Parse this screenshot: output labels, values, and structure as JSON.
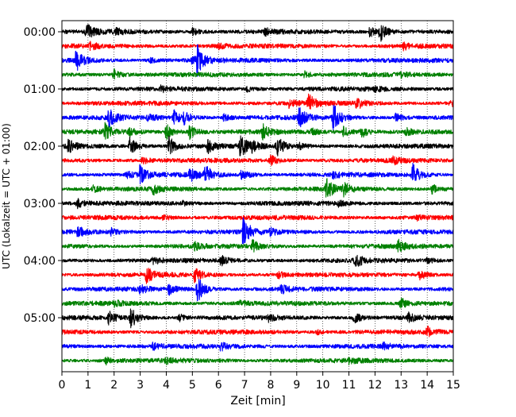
{
  "chart_data": {
    "type": "line",
    "subtype": "helicorder",
    "xlabel": "Zeit  [min]",
    "ylabel": "UTC (Lokalzeit = UTC + 01:00)",
    "xlim": [
      0,
      15
    ],
    "x_ticks": [
      "0",
      "1",
      "2",
      "3",
      "4",
      "5",
      "6",
      "7",
      "8",
      "9",
      "10",
      "11",
      "12",
      "13",
      "14",
      "15"
    ],
    "y_ticks": [
      "00:00",
      "01:00",
      "02:00",
      "03:00",
      "04:00",
      "05:00"
    ],
    "grid": "vertical dotted lines at each minute",
    "line_colors": [
      "#000000",
      "#ff0000",
      "#0000ff",
      "#008000"
    ],
    "rows": [
      {
        "start": "00:00",
        "color": "#000000",
        "events": [
          [
            0.95,
            1.0
          ],
          [
            12.2,
            1.2
          ],
          [
            11.8,
            0.7
          ],
          [
            5.0,
            0.45
          ],
          [
            7.8,
            0.45
          ],
          [
            2.1,
            0.35
          ]
        ]
      },
      {
        "start": "00:15",
        "color": "#ff0000",
        "events": [
          [
            1.1,
            0.4
          ],
          [
            13.1,
            0.45
          ],
          [
            6.0,
            0.3
          ]
        ]
      },
      {
        "start": "00:30",
        "color": "#0000ff",
        "events": [
          [
            0.55,
            1.5
          ],
          [
            5.2,
            1.8
          ],
          [
            5.0,
            0.4
          ],
          [
            3.4,
            0.3
          ]
        ]
      },
      {
        "start": "00:45",
        "color": "#008000",
        "events": [
          [
            2.0,
            0.7
          ],
          [
            9.3,
            0.4
          ],
          [
            13.0,
            0.3
          ]
        ]
      },
      {
        "start": "01:00",
        "color": "#000000",
        "events": [
          [
            3.8,
            0.3
          ],
          [
            7.1,
            0.3
          ],
          [
            12.0,
            0.3
          ]
        ]
      },
      {
        "start": "01:15",
        "color": "#ff0000",
        "events": [
          [
            9.45,
            1.2
          ],
          [
            11.3,
            0.8
          ],
          [
            8.7,
            0.5
          ],
          [
            14.9,
            0.4
          ]
        ]
      },
      {
        "start": "01:30",
        "color": "#0000ff",
        "events": [
          [
            1.8,
            1.3
          ],
          [
            9.1,
            1.3
          ],
          [
            10.4,
            1.9
          ],
          [
            4.7,
            0.8
          ],
          [
            4.3,
            0.9
          ],
          [
            3.3,
            0.5
          ],
          [
            12.8,
            0.5
          ],
          [
            6.2,
            0.4
          ]
        ]
      },
      {
        "start": "01:45",
        "color": "#008000",
        "events": [
          [
            1.65,
            1.1
          ],
          [
            4.0,
            1.0
          ],
          [
            4.9,
            0.9
          ],
          [
            7.7,
            1.0
          ],
          [
            10.8,
            0.7
          ],
          [
            11.5,
            0.8
          ],
          [
            2.6,
            0.5
          ],
          [
            9.6,
            0.4
          ],
          [
            13.2,
            0.4
          ]
        ]
      },
      {
        "start": "02:00",
        "color": "#000000",
        "events": [
          [
            2.6,
            1.2
          ],
          [
            4.1,
            1.3
          ],
          [
            6.85,
            1.5
          ],
          [
            8.25,
            1.3
          ],
          [
            0.25,
            0.8
          ],
          [
            5.6,
            0.8
          ],
          [
            7.3,
            0.6
          ],
          [
            9.1,
            0.5
          ]
        ]
      },
      {
        "start": "02:15",
        "color": "#ff0000",
        "events": [
          [
            8.0,
            0.7
          ],
          [
            3.1,
            0.4
          ],
          [
            12.7,
            0.4
          ]
        ]
      },
      {
        "start": "02:30",
        "color": "#0000ff",
        "events": [
          [
            3.0,
            1.3
          ],
          [
            13.45,
            1.4
          ],
          [
            5.5,
            1.2
          ],
          [
            4.9,
            0.9
          ],
          [
            6.9,
            0.8
          ],
          [
            2.5,
            0.5
          ],
          [
            10.4,
            0.4
          ]
        ]
      },
      {
        "start": "02:45",
        "color": "#008000",
        "events": [
          [
            10.15,
            1.5
          ],
          [
            10.8,
            0.8
          ],
          [
            3.5,
            0.6
          ],
          [
            1.2,
            0.4
          ],
          [
            14.2,
            0.6
          ]
        ]
      },
      {
        "start": "03:00",
        "color": "#000000",
        "events": [
          [
            0.6,
            0.5
          ],
          [
            4.6,
            0.3
          ],
          [
            10.6,
            0.3
          ]
        ]
      },
      {
        "start": "03:15",
        "color": "#ff0000",
        "events": [
          [
            3.9,
            0.3
          ],
          [
            13.6,
            0.3
          ]
        ]
      },
      {
        "start": "03:30",
        "color": "#0000ff",
        "events": [
          [
            6.95,
            2.0
          ],
          [
            0.6,
            0.7
          ],
          [
            1.9,
            0.4
          ],
          [
            8.0,
            0.4
          ]
        ]
      },
      {
        "start": "03:45",
        "color": "#008000",
        "events": [
          [
            7.3,
            0.8
          ],
          [
            12.9,
            0.7
          ],
          [
            5.1,
            0.4
          ]
        ]
      },
      {
        "start": "04:00",
        "color": "#000000",
        "events": [
          [
            11.25,
            0.9
          ],
          [
            6.1,
            0.6
          ],
          [
            3.5,
            0.4
          ],
          [
            14.0,
            0.3
          ]
        ]
      },
      {
        "start": "04:15",
        "color": "#ff0000",
        "events": [
          [
            3.25,
            1.1
          ],
          [
            5.1,
            1.0
          ],
          [
            13.7,
            0.7
          ],
          [
            8.3,
            0.4
          ]
        ]
      },
      {
        "start": "04:30",
        "color": "#0000ff",
        "events": [
          [
            5.2,
            1.8
          ],
          [
            4.1,
            0.8
          ],
          [
            8.4,
            0.6
          ],
          [
            3.0,
            0.5
          ]
        ]
      },
      {
        "start": "04:45",
        "color": "#008000",
        "events": [
          [
            13.0,
            0.8
          ],
          [
            6.8,
            0.3
          ],
          [
            2.0,
            0.3
          ]
        ]
      },
      {
        "start": "05:00",
        "color": "#000000",
        "events": [
          [
            2.65,
            1.5
          ],
          [
            1.8,
            0.8
          ],
          [
            11.2,
            0.8
          ],
          [
            13.3,
            0.6
          ],
          [
            4.5,
            0.5
          ],
          [
            7.9,
            0.4
          ]
        ]
      },
      {
        "start": "05:15",
        "color": "#ff0000",
        "events": [
          [
            14.0,
            0.6
          ],
          [
            9.8,
            0.3
          ]
        ]
      },
      {
        "start": "05:30",
        "color": "#0000ff",
        "events": [
          [
            6.1,
            0.5
          ],
          [
            3.5,
            0.4
          ],
          [
            12.3,
            0.4
          ]
        ]
      },
      {
        "start": "05:45",
        "color": "#008000",
        "events": [
          [
            1.7,
            0.4
          ],
          [
            4.0,
            0.3
          ],
          [
            11.0,
            0.3
          ]
        ]
      }
    ]
  }
}
